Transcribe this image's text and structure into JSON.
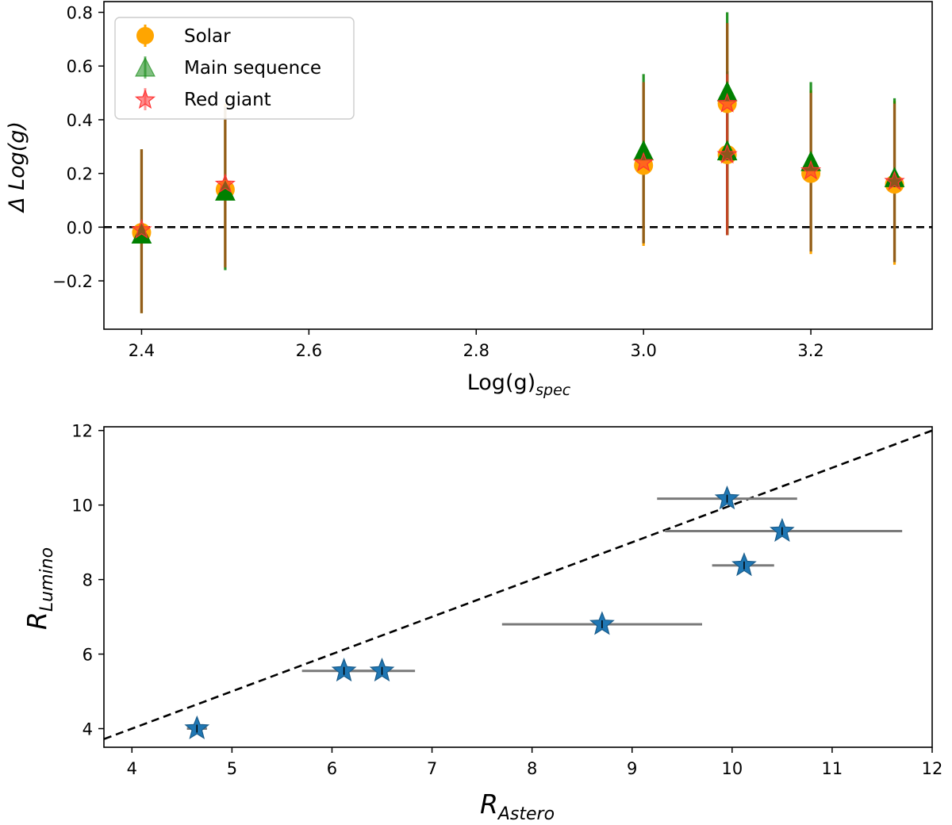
{
  "chart_data": [
    {
      "type": "scatter",
      "title": "",
      "xlabel": "Log(g)",
      "xlabel_sub": "spec",
      "ylabel": "Δ Log(g)",
      "xlim": [
        2.355,
        3.345
      ],
      "ylim": [
        -0.38,
        0.84
      ],
      "xticks": [
        2.4,
        2.6,
        2.8,
        3.0,
        3.2
      ],
      "xtick_labels": [
        "2.4",
        "2.6",
        "2.8",
        "3.0",
        "3.2"
      ],
      "yticks": [
        -0.2,
        0.0,
        0.2,
        0.4,
        0.6,
        0.8
      ],
      "ytick_labels": [
        "−0.2",
        "0.0",
        "0.2",
        "0.4",
        "0.6",
        "0.8"
      ],
      "reference_line": {
        "y": 0.0,
        "style": "dashed",
        "color": "#000000"
      },
      "legend": {
        "placement": "top-left",
        "entries": [
          "Solar",
          "Main sequence",
          "Red giant"
        ]
      },
      "series": [
        {
          "name": "Solar",
          "marker": "circle",
          "color": "#ffa500",
          "x": [
            2.4,
            2.5,
            3.0,
            3.1,
            3.1,
            3.2,
            3.3
          ],
          "y": [
            -0.02,
            0.14,
            0.23,
            0.27,
            0.46,
            0.2,
            0.16
          ],
          "yerr_low": [
            -0.32,
            -0.15,
            -0.07,
            -0.03,
            -0.03,
            -0.1,
            -0.14
          ],
          "yerr_high": [
            0.29,
            0.46,
            0.54,
            0.57,
            0.76,
            0.51,
            0.47
          ]
        },
        {
          "name": "Main sequence",
          "marker": "triangle",
          "color": "#008000",
          "x": [
            2.4,
            2.5,
            3.0,
            3.1,
            3.1,
            3.2,
            3.3
          ],
          "y": [
            -0.03,
            0.13,
            0.28,
            0.28,
            0.5,
            0.24,
            0.18
          ],
          "yerr_low": [
            -0.32,
            -0.16,
            -0.06,
            -0.03,
            -0.03,
            -0.09,
            -0.13
          ],
          "yerr_high": [
            0.29,
            0.45,
            0.57,
            0.58,
            0.8,
            0.54,
            0.48
          ]
        },
        {
          "name": "Red giant",
          "marker": "star",
          "color": "#ff3333",
          "x": [
            2.4,
            2.5,
            3.0,
            3.1,
            3.1,
            3.2,
            3.3
          ],
          "y": [
            -0.01,
            0.16,
            0.24,
            0.27,
            0.46,
            0.21,
            0.17
          ],
          "yerr_low": [
            -0.32,
            -0.15,
            -0.06,
            -0.03,
            -0.03,
            -0.09,
            -0.13
          ],
          "yerr_high": [
            0.29,
            0.45,
            0.54,
            0.57,
            0.76,
            0.5,
            0.46
          ]
        }
      ]
    },
    {
      "type": "scatter",
      "title": "",
      "xlabel": "R",
      "xlabel_sub": "Astero",
      "ylabel": "R",
      "ylabel_sub": "Lumino",
      "xlim": [
        3.72,
        12.0
      ],
      "ylim": [
        3.5,
        12.1
      ],
      "xticks": [
        4,
        5,
        6,
        7,
        8,
        9,
        10,
        11,
        12
      ],
      "xtick_labels": [
        "4",
        "5",
        "6",
        "7",
        "8",
        "9",
        "10",
        "11",
        "12"
      ],
      "yticks": [
        4,
        6,
        8,
        10,
        12
      ],
      "ytick_labels": [
        "4",
        "6",
        "8",
        "10",
        "12"
      ],
      "reference_line": {
        "type": "one-to-one",
        "style": "dashed",
        "color": "#000000"
      },
      "series": [
        {
          "name": "Stars",
          "marker": "star",
          "color": "#1f77b4",
          "x": [
            4.65,
            6.12,
            6.5,
            8.7,
            9.95,
            10.12,
            10.5
          ],
          "y": [
            4.0,
            5.55,
            5.55,
            6.8,
            10.17,
            8.38,
            9.3
          ],
          "xerr_low": [
            4.55,
            5.7,
            6.1,
            7.7,
            9.25,
            9.8,
            9.33
          ],
          "xerr_high": [
            4.75,
            6.5,
            6.83,
            9.7,
            10.65,
            10.42,
            11.7
          ]
        }
      ]
    }
  ]
}
